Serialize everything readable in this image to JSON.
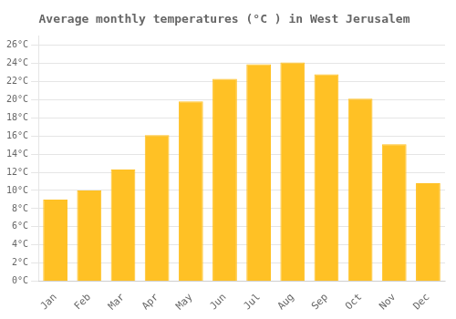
{
  "chart_data": {
    "type": "bar",
    "title": "Average monthly temperatures (°C ) in West Jerusalem",
    "categories": [
      "Jan",
      "Feb",
      "Mar",
      "Apr",
      "May",
      "Jun",
      "Jul",
      "Aug",
      "Sep",
      "Oct",
      "Nov",
      "Dec"
    ],
    "values": [
      9.0,
      10.0,
      12.3,
      16.1,
      19.8,
      22.3,
      23.9,
      24.1,
      22.8,
      20.1,
      15.1,
      10.8
    ],
    "color": "#FFC125",
    "ylim": [
      0,
      27
    ],
    "yticks": [
      {
        "value": 0,
        "label": "0°C"
      },
      {
        "value": 2,
        "label": "2°C"
      },
      {
        "value": 4,
        "label": "4°C"
      },
      {
        "value": 6,
        "label": "6°C"
      },
      {
        "value": 8,
        "label": "8°C"
      },
      {
        "value": 10,
        "label": "10°C"
      },
      {
        "value": 12,
        "label": "12°C"
      },
      {
        "value": 14,
        "label": "14°C"
      },
      {
        "value": 16,
        "label": "16°C"
      },
      {
        "value": 18,
        "label": "18°C"
      },
      {
        "value": 20,
        "label": "20°C"
      },
      {
        "value": 22,
        "label": "22°C"
      },
      {
        "value": 24,
        "label": "24°C"
      },
      {
        "value": 26,
        "label": "26°C"
      }
    ],
    "grid": true
  }
}
